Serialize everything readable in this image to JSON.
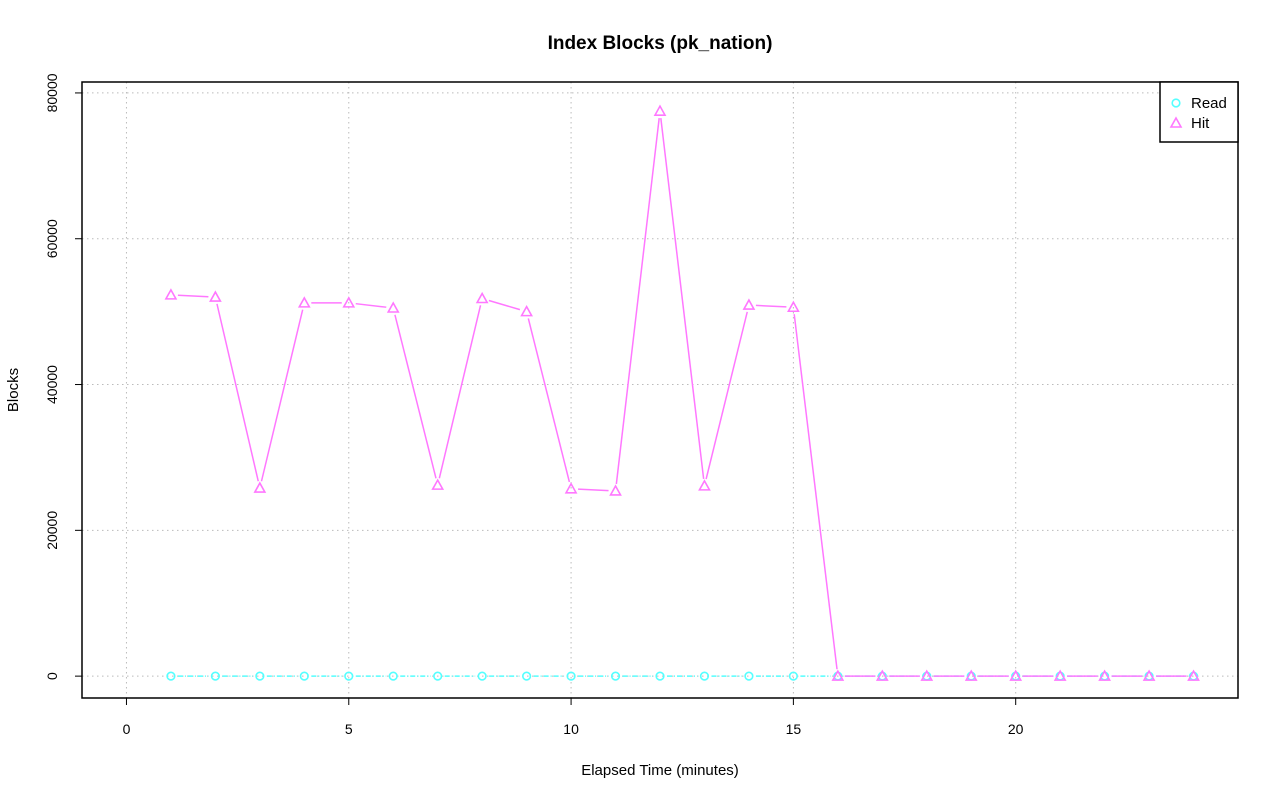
{
  "chart_data": {
    "type": "line",
    "title": "Index Blocks (pk_nation)",
    "xlabel": "Elapsed Time (minutes)",
    "ylabel": "Blocks",
    "xlim": [
      -1,
      25
    ],
    "ylim": [
      -3000,
      81500
    ],
    "x_ticks": [
      0,
      5,
      10,
      15,
      20
    ],
    "y_ticks": [
      0,
      20000,
      40000,
      60000,
      80000
    ],
    "x_tick_labels": [
      "0",
      "5",
      "10",
      "15",
      "20"
    ],
    "y_tick_labels": [
      "0",
      "20000",
      "40000",
      "60000",
      "80000"
    ],
    "grid": true,
    "legend_position": "top-right",
    "x": [
      1,
      2,
      3,
      4,
      5,
      6,
      7,
      8,
      9,
      10,
      11,
      12,
      13,
      14,
      15,
      16,
      17,
      18,
      19,
      20,
      21,
      22,
      23,
      24
    ],
    "series": [
      {
        "name": "Read",
        "color": "#55ffff",
        "marker": "circle",
        "values": [
          0,
          0,
          0,
          0,
          0,
          0,
          0,
          0,
          0,
          0,
          0,
          0,
          0,
          0,
          0,
          0,
          0,
          0,
          0,
          0,
          0,
          0,
          0,
          0
        ]
      },
      {
        "name": "Hit",
        "color": "#ff77ff",
        "marker": "triangle",
        "values": [
          52300,
          52000,
          25800,
          51200,
          51200,
          50500,
          26200,
          51800,
          50000,
          25700,
          25400,
          77500,
          26100,
          50900,
          50600,
          0,
          0,
          0,
          0,
          0,
          0,
          0,
          0,
          0
        ]
      }
    ]
  }
}
